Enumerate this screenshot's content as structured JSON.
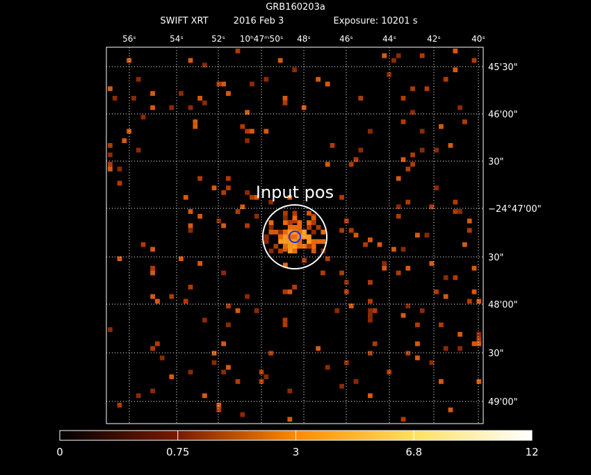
{
  "header": {
    "title": "GRB160203a",
    "instrument": "SWIFT XRT",
    "date": "2016 Feb  3",
    "exposure": "Exposure: 10201 s"
  },
  "x_axis_labels": [
    "56ˢ",
    "54ˢ",
    "52ˢ",
    "10ʰ47ᵐ50ˢ",
    "48ˢ",
    "46ˢ",
    "44ˢ",
    "42ˢ",
    "40ˢ"
  ],
  "y_axis_labels": [
    "45'30\"",
    "46'00\"",
    "30\"",
    "−24°47'00\"",
    "30\"",
    "48'00\"",
    "30\"",
    "49'00\""
  ],
  "annotation": "Input pos",
  "colorbar_labels": [
    "0",
    "0.75",
    "3",
    "6.8",
    "12"
  ]
}
